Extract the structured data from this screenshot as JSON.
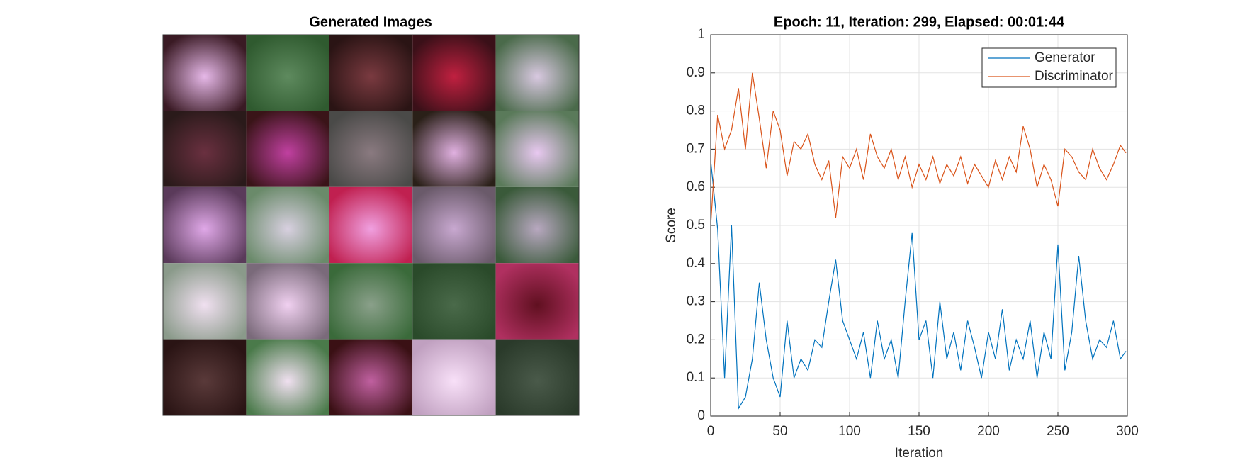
{
  "image_panel": {
    "title": "Generated Images"
  },
  "chart_data": {
    "type": "line",
    "title": "Epoch: 11, Iteration: 299, Elapsed: 00:01:44",
    "x_label": "Iteration",
    "y_label": "Score",
    "x": [
      0,
      5,
      10,
      15,
      20,
      25,
      30,
      35,
      40,
      45,
      50,
      55,
      60,
      65,
      70,
      75,
      80,
      85,
      90,
      95,
      100,
      105,
      110,
      115,
      120,
      125,
      130,
      135,
      140,
      145,
      150,
      155,
      160,
      165,
      170,
      175,
      180,
      185,
      190,
      195,
      200,
      205,
      210,
      215,
      220,
      225,
      230,
      235,
      240,
      245,
      250,
      255,
      260,
      265,
      270,
      275,
      280,
      285,
      290,
      295,
      299
    ],
    "series": [
      {
        "name": "Generator",
        "color": "#0072bd",
        "values": [
          0.67,
          0.49,
          0.1,
          0.5,
          0.02,
          0.05,
          0.15,
          0.35,
          0.2,
          0.1,
          0.05,
          0.25,
          0.1,
          0.15,
          0.12,
          0.2,
          0.18,
          0.3,
          0.41,
          0.25,
          0.2,
          0.15,
          0.22,
          0.1,
          0.25,
          0.15,
          0.2,
          0.1,
          0.3,
          0.48,
          0.2,
          0.25,
          0.1,
          0.3,
          0.15,
          0.22,
          0.12,
          0.25,
          0.18,
          0.1,
          0.22,
          0.15,
          0.28,
          0.12,
          0.2,
          0.15,
          0.25,
          0.1,
          0.22,
          0.15,
          0.45,
          0.12,
          0.22,
          0.42,
          0.25,
          0.15,
          0.2,
          0.18,
          0.25,
          0.15,
          0.17
        ]
      },
      {
        "name": "Discriminator",
        "color": "#d95319",
        "values": [
          0.5,
          0.79,
          0.7,
          0.75,
          0.86,
          0.7,
          0.9,
          0.78,
          0.65,
          0.8,
          0.75,
          0.63,
          0.72,
          0.7,
          0.74,
          0.66,
          0.62,
          0.67,
          0.52,
          0.68,
          0.65,
          0.7,
          0.62,
          0.74,
          0.68,
          0.65,
          0.7,
          0.62,
          0.68,
          0.6,
          0.66,
          0.62,
          0.68,
          0.61,
          0.66,
          0.63,
          0.68,
          0.61,
          0.66,
          0.63,
          0.6,
          0.67,
          0.62,
          0.68,
          0.64,
          0.76,
          0.7,
          0.6,
          0.66,
          0.62,
          0.55,
          0.7,
          0.68,
          0.64,
          0.62,
          0.7,
          0.65,
          0.62,
          0.66,
          0.71,
          0.69
        ]
      }
    ],
    "xlim": [
      0,
      300
    ],
    "ylim": [
      0,
      1
    ],
    "xticks": [
      0,
      50,
      100,
      150,
      200,
      250,
      300
    ],
    "yticks": [
      0,
      0.1,
      0.2,
      0.3,
      0.4,
      0.5,
      0.6,
      0.7,
      0.8,
      0.9,
      1
    ],
    "grid": true,
    "legend": "top-right"
  }
}
